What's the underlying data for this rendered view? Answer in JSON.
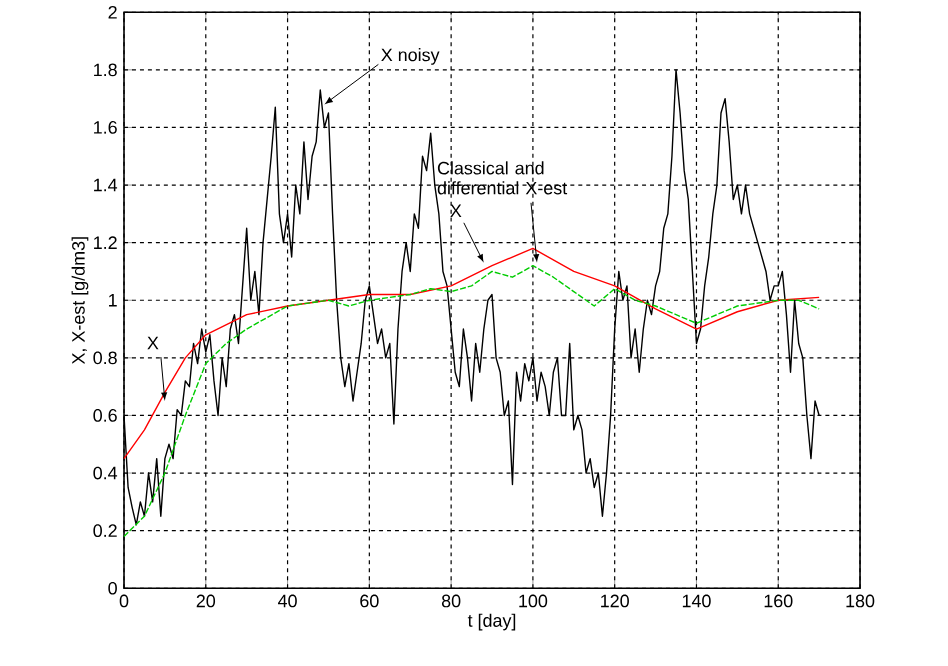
{
  "chart_data": {
    "type": "line",
    "xlabel": "t [day]",
    "ylabel": "X, X-est [g/dm3]",
    "xlim": [
      0,
      180
    ],
    "ylim": [
      0,
      2
    ],
    "xticks": [
      0,
      20,
      40,
      60,
      80,
      100,
      120,
      140,
      160,
      180
    ],
    "yticks": [
      0,
      0.2,
      0.4,
      0.6,
      0.8,
      1,
      1.2,
      1.4,
      1.6,
      1.8,
      2
    ],
    "grid": true,
    "annotations": [
      {
        "text": "X noisy",
        "x": 49,
        "y": 1.68
      },
      {
        "text": "X",
        "x": 10,
        "y": 0.65
      },
      {
        "text": "X",
        "x": 88,
        "y": 1.13
      },
      {
        "text": "Classical and differential X-est",
        "x": 101,
        "y": 1.13
      }
    ],
    "series": [
      {
        "color": "#000000",
        "line_style": "solid",
        "x": [
          0,
          1,
          2,
          3,
          4,
          5,
          6,
          7,
          8,
          9,
          10,
          11,
          12,
          13,
          14,
          15,
          16,
          17,
          18,
          19,
          20,
          21,
          22,
          23,
          24,
          25,
          26,
          27,
          28,
          29,
          30,
          31,
          32,
          33,
          34,
          35,
          36,
          37,
          38,
          39,
          40,
          41,
          42,
          43,
          44,
          45,
          46,
          47,
          48,
          49,
          50,
          51,
          52,
          53,
          54,
          55,
          56,
          57,
          58,
          59,
          60,
          61,
          62,
          63,
          64,
          65,
          66,
          67,
          68,
          69,
          70,
          71,
          72,
          73,
          74,
          75,
          76,
          77,
          78,
          79,
          80,
          81,
          82,
          83,
          84,
          85,
          86,
          87,
          88,
          89,
          90,
          91,
          92,
          93,
          94,
          95,
          96,
          97,
          98,
          99,
          100,
          101,
          102,
          103,
          104,
          105,
          106,
          107,
          108,
          109,
          110,
          111,
          112,
          113,
          114,
          115,
          116,
          117,
          118,
          119,
          120,
          121,
          122,
          123,
          124,
          125,
          126,
          127,
          128,
          129,
          130,
          131,
          132,
          133,
          134,
          135,
          136,
          137,
          138,
          139,
          140,
          141,
          142,
          143,
          144,
          145,
          146,
          147,
          148,
          149,
          150,
          151,
          152,
          153,
          154,
          155,
          156,
          157,
          158,
          159,
          160,
          161,
          162,
          163,
          164,
          165,
          166,
          167,
          168,
          169,
          170
        ],
        "values": [
          0.6,
          0.35,
          0.28,
          0.22,
          0.3,
          0.25,
          0.4,
          0.3,
          0.45,
          0.25,
          0.45,
          0.5,
          0.45,
          0.62,
          0.6,
          0.72,
          0.7,
          0.85,
          0.78,
          0.9,
          0.82,
          0.88,
          0.72,
          0.6,
          0.8,
          0.7,
          0.9,
          0.95,
          0.85,
          1.05,
          1.25,
          1.0,
          1.1,
          0.95,
          1.2,
          1.35,
          1.5,
          1.67,
          1.3,
          1.2,
          1.3,
          1.15,
          1.4,
          1.3,
          1.55,
          1.35,
          1.5,
          1.55,
          1.73,
          1.6,
          1.65,
          1.3,
          1.0,
          0.8,
          0.7,
          0.78,
          0.65,
          0.75,
          0.85,
          1.0,
          1.05,
          0.95,
          0.85,
          0.9,
          0.8,
          0.85,
          0.57,
          0.9,
          1.1,
          1.2,
          1.1,
          1.3,
          1.25,
          1.5,
          1.45,
          1.58,
          1.4,
          1.3,
          1.1,
          1.05,
          0.9,
          0.75,
          0.7,
          0.9,
          0.8,
          0.65,
          0.85,
          0.75,
          0.9,
          1.0,
          1.02,
          0.8,
          0.75,
          0.6,
          0.65,
          0.36,
          0.75,
          0.65,
          0.78,
          0.72,
          0.8,
          0.65,
          0.75,
          0.7,
          0.6,
          0.75,
          0.8,
          0.6,
          0.6,
          0.85,
          0.55,
          0.6,
          0.55,
          0.4,
          0.45,
          0.35,
          0.4,
          0.25,
          0.4,
          0.6,
          0.9,
          1.1,
          1.0,
          1.05,
          0.8,
          0.9,
          0.75,
          0.9,
          1.0,
          0.95,
          1.05,
          1.1,
          1.25,
          1.3,
          1.5,
          1.8,
          1.65,
          1.45,
          1.35,
          1.1,
          0.85,
          0.9,
          1.05,
          1.15,
          1.3,
          1.4,
          1.65,
          1.7,
          1.55,
          1.35,
          1.4,
          1.3,
          1.4,
          1.3,
          1.25,
          1.2,
          1.15,
          1.1,
          1.0,
          1.05,
          1.05,
          1.1,
          0.95,
          0.75,
          1.0,
          0.85,
          0.8,
          0.6,
          0.45,
          0.65,
          0.6
        ]
      },
      {
        "color": "#ff0000",
        "line_style": "solid",
        "x": [
          0,
          5,
          10,
          15,
          20,
          30,
          40,
          50,
          60,
          70,
          80,
          90,
          100,
          110,
          120,
          130,
          140,
          150,
          160,
          170
        ],
        "values": [
          0.45,
          0.55,
          0.68,
          0.8,
          0.88,
          0.95,
          0.98,
          1.0,
          1.02,
          1.02,
          1.05,
          1.12,
          1.18,
          1.1,
          1.05,
          0.97,
          0.9,
          0.96,
          1.0,
          1.01
        ]
      },
      {
        "color": "#00cc00",
        "line_style": "dashed",
        "x": [
          0,
          5,
          10,
          15,
          20,
          25,
          30,
          40,
          50,
          55,
          60,
          70,
          75,
          80,
          85,
          90,
          95,
          100,
          105,
          110,
          115,
          120,
          125,
          130,
          140,
          145,
          150,
          160,
          165,
          170
        ],
        "values": [
          0.18,
          0.25,
          0.4,
          0.6,
          0.78,
          0.85,
          0.9,
          0.98,
          1.0,
          0.98,
          1.0,
          1.02,
          1.04,
          1.03,
          1.05,
          1.1,
          1.08,
          1.12,
          1.08,
          1.03,
          0.98,
          1.04,
          1.0,
          0.98,
          0.92,
          0.95,
          0.98,
          1.0,
          1.0,
          0.97
        ]
      }
    ]
  }
}
